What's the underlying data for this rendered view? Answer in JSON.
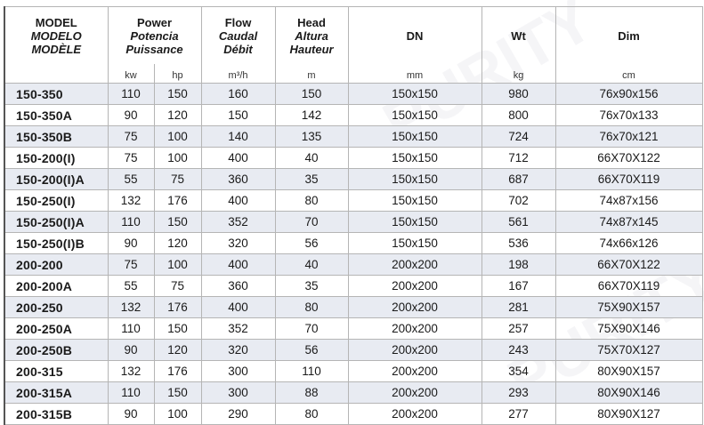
{
  "watermark": "PURITY",
  "header": {
    "model": [
      "MODEL",
      "MODELO",
      "MODÈLE"
    ],
    "power": [
      "Power",
      "Potencia",
      "Puissance"
    ],
    "flow": [
      "Flow",
      "Caudal",
      "Débit"
    ],
    "head": [
      "Head",
      "Altura",
      "Hauteur"
    ],
    "dn": "DN",
    "wt": "Wt",
    "dim": "Dim"
  },
  "units": {
    "kw": "kw",
    "hp": "hp",
    "flow": "m³/h",
    "head": "m",
    "dn": "mm",
    "wt": "kg",
    "dim": "cm"
  },
  "rows": [
    [
      "150-350",
      "110",
      "150",
      "160",
      "150",
      "150x150",
      "980",
      "76x90x156"
    ],
    [
      "150-350A",
      "90",
      "120",
      "150",
      "142",
      "150x150",
      "800",
      "76x70x133"
    ],
    [
      "150-350B",
      "75",
      "100",
      "140",
      "135",
      "150x150",
      "724",
      "76x70x121"
    ],
    [
      "150-200(I)",
      "75",
      "100",
      "400",
      "40",
      "150x150",
      "712",
      "66X70X122"
    ],
    [
      "150-200(I)A",
      "55",
      "75",
      "360",
      "35",
      "150x150",
      "687",
      "66X70X119"
    ],
    [
      "150-250(I)",
      "132",
      "176",
      "400",
      "80",
      "150x150",
      "702",
      "74x87x156"
    ],
    [
      "150-250(I)A",
      "110",
      "150",
      "352",
      "70",
      "150x150",
      "561",
      "74x87x145"
    ],
    [
      "150-250(I)B",
      "90",
      "120",
      "320",
      "56",
      "150x150",
      "536",
      "74x66x126"
    ],
    [
      "200-200",
      "75",
      "100",
      "400",
      "40",
      "200x200",
      "198",
      "66X70X122"
    ],
    [
      "200-200A",
      "55",
      "75",
      "360",
      "35",
      "200x200",
      "167",
      "66X70X119"
    ],
    [
      "200-250",
      "132",
      "176",
      "400",
      "80",
      "200x200",
      "281",
      "75X90X157"
    ],
    [
      "200-250A",
      "110",
      "150",
      "352",
      "70",
      "200x200",
      "257",
      "75X90X146"
    ],
    [
      "200-250B",
      "90",
      "120",
      "320",
      "56",
      "200x200",
      "243",
      "75X70X127"
    ],
    [
      "200-315",
      "132",
      "176",
      "300",
      "110",
      "200x200",
      "354",
      "80X90X157"
    ],
    [
      "200-315A",
      "110",
      "150",
      "300",
      "88",
      "200x200",
      "293",
      "80X90X146"
    ],
    [
      "200-315B",
      "90",
      "100",
      "290",
      "80",
      "200x200",
      "277",
      "80X90X127"
    ]
  ]
}
